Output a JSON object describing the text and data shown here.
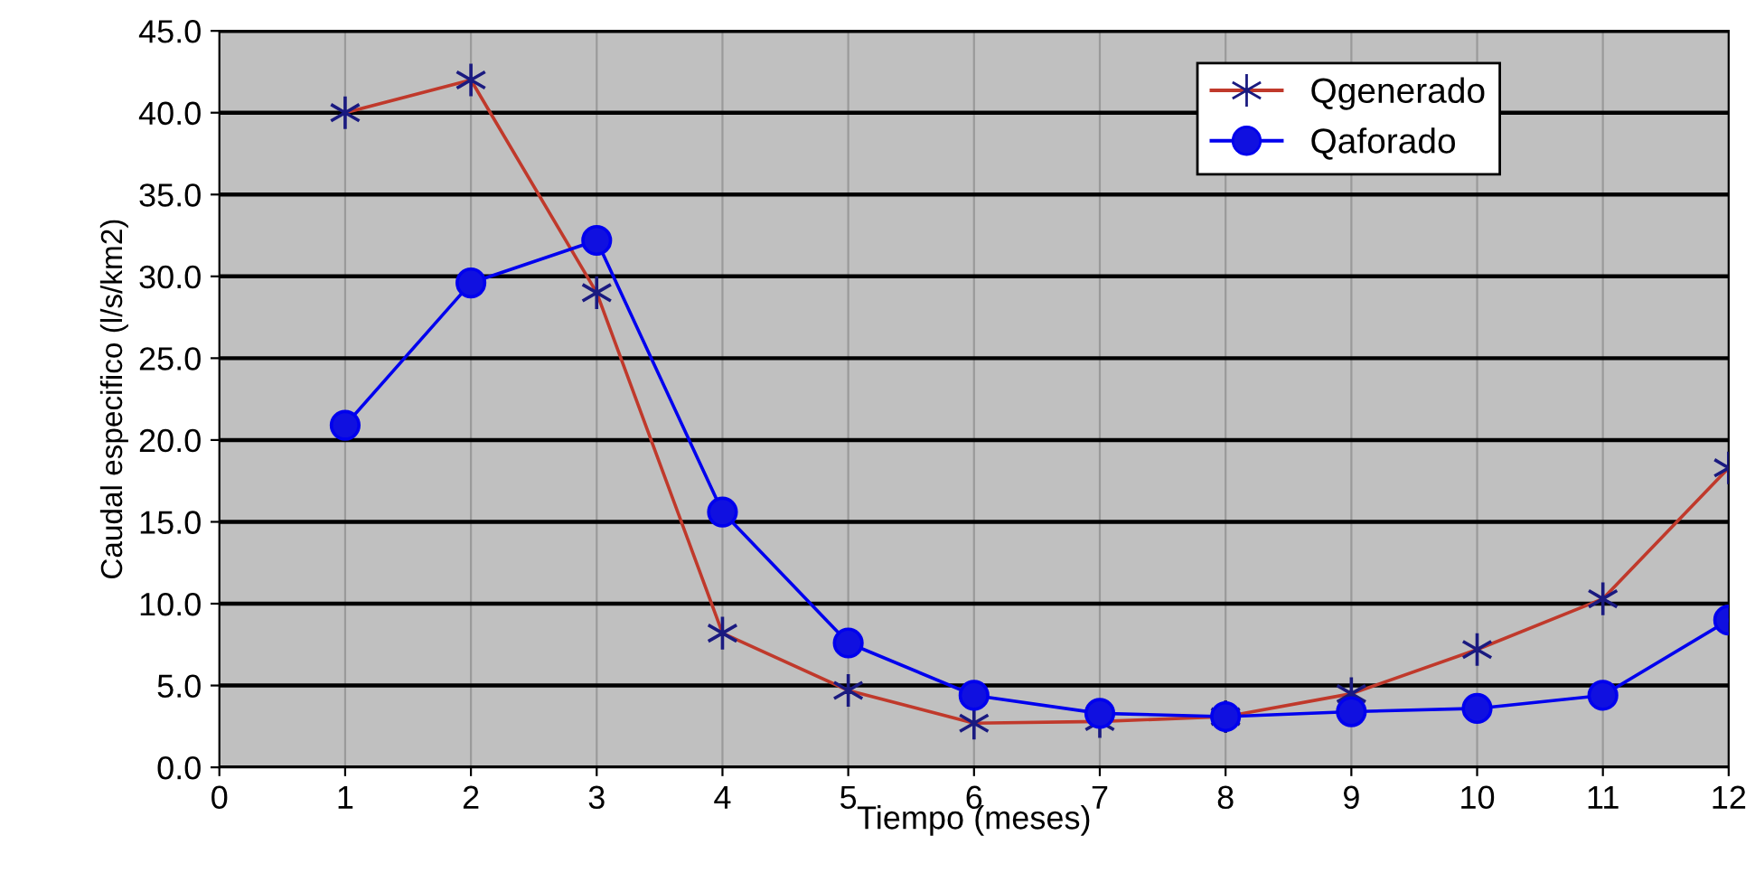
{
  "chart_data": {
    "type": "line",
    "xlabel": "Tiempo (meses)",
    "ylabel": "Caudal especifico (l/s/km2)",
    "x": [
      1,
      2,
      3,
      4,
      5,
      6,
      7,
      8,
      9,
      10,
      11,
      12
    ],
    "series": [
      {
        "name": "Qgenerado",
        "color": "#c0392b",
        "marker": "cross",
        "values": [
          40.0,
          42.0,
          29.0,
          8.2,
          4.7,
          2.7,
          2.8,
          3.1,
          4.5,
          7.2,
          10.3,
          18.3
        ]
      },
      {
        "name": "Qaforado",
        "color": "#0000ee",
        "marker": "circle",
        "values": [
          20.9,
          29.6,
          32.2,
          15.6,
          7.6,
          4.4,
          3.3,
          3.1,
          3.4,
          3.6,
          4.4,
          9.0
        ]
      }
    ],
    "xlim": [
      0,
      12
    ],
    "xticks": [
      0,
      1,
      2,
      3,
      4,
      5,
      6,
      7,
      8,
      9,
      10,
      11,
      12
    ],
    "ylim": [
      0,
      45
    ],
    "yticks": [
      {
        "value": 0,
        "label": "0.0"
      },
      {
        "value": 5,
        "label": "5.0"
      },
      {
        "value": 10,
        "label": "10.0"
      },
      {
        "value": 15,
        "label": "15.0"
      },
      {
        "value": 20,
        "label": "20.0"
      },
      {
        "value": 25,
        "label": "25.0"
      },
      {
        "value": 30,
        "label": "30.0"
      },
      {
        "value": 35,
        "label": "35.0"
      },
      {
        "value": 40,
        "label": "40.0"
      },
      {
        "value": 45,
        "label": "45.0"
      }
    ],
    "grid": true,
    "legend": "top right",
    "line_style": "solid"
  }
}
